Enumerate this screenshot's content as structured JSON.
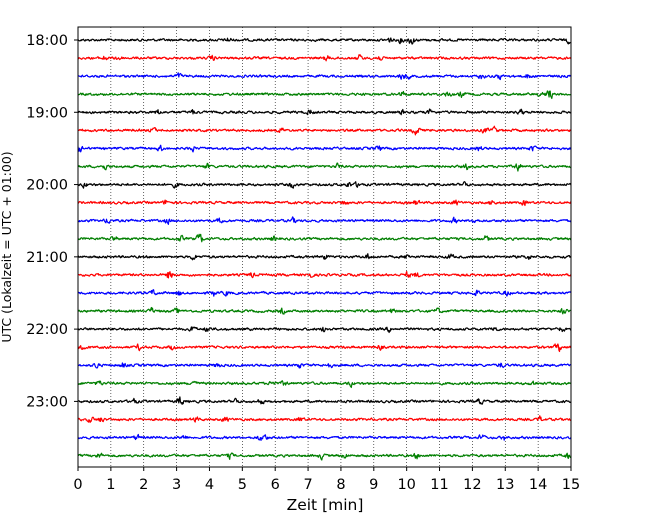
{
  "chart_data": {
    "type": "line",
    "title": "",
    "xlabel": "Zeit  [min]",
    "ylabel": "UTC (Lokalzeit = UTC + 01:00)",
    "xlim": [
      0,
      15
    ],
    "x_ticks": [
      "0",
      "1",
      "2",
      "3",
      "4",
      "5",
      "6",
      "7",
      "8",
      "9",
      "10",
      "11",
      "12",
      "13",
      "14",
      "15"
    ],
    "y_ticks": [
      "18:00",
      "19:00",
      "20:00",
      "21:00",
      "22:00",
      "23:00"
    ],
    "grid": "vertical dotted lines at each minute",
    "trace_colors": [
      "#000000",
      "#ff0000",
      "#0000ff",
      "#007f00"
    ],
    "traces": [
      {
        "start": "18:00",
        "color": "#000000"
      },
      {
        "start": "18:15",
        "color": "#ff0000"
      },
      {
        "start": "18:30",
        "color": "#0000ff"
      },
      {
        "start": "18:45",
        "color": "#007f00"
      },
      {
        "start": "19:00",
        "color": "#000000"
      },
      {
        "start": "19:15",
        "color": "#ff0000"
      },
      {
        "start": "19:30",
        "color": "#0000ff"
      },
      {
        "start": "19:45",
        "color": "#007f00"
      },
      {
        "start": "20:00",
        "color": "#000000"
      },
      {
        "start": "20:15",
        "color": "#ff0000"
      },
      {
        "start": "20:30",
        "color": "#0000ff"
      },
      {
        "start": "20:45",
        "color": "#007f00"
      },
      {
        "start": "21:00",
        "color": "#000000"
      },
      {
        "start": "21:15",
        "color": "#ff0000"
      },
      {
        "start": "21:30",
        "color": "#0000ff"
      },
      {
        "start": "21:45",
        "color": "#007f00"
      },
      {
        "start": "22:00",
        "color": "#000000"
      },
      {
        "start": "22:15",
        "color": "#ff0000"
      },
      {
        "start": "22:30",
        "color": "#0000ff"
      },
      {
        "start": "22:45",
        "color": "#007f00"
      },
      {
        "start": "23:00",
        "color": "#000000"
      },
      {
        "start": "23:15",
        "color": "#ff0000"
      },
      {
        "start": "23:30",
        "color": "#0000ff"
      },
      {
        "start": "23:45",
        "color": "#007f00"
      }
    ]
  }
}
